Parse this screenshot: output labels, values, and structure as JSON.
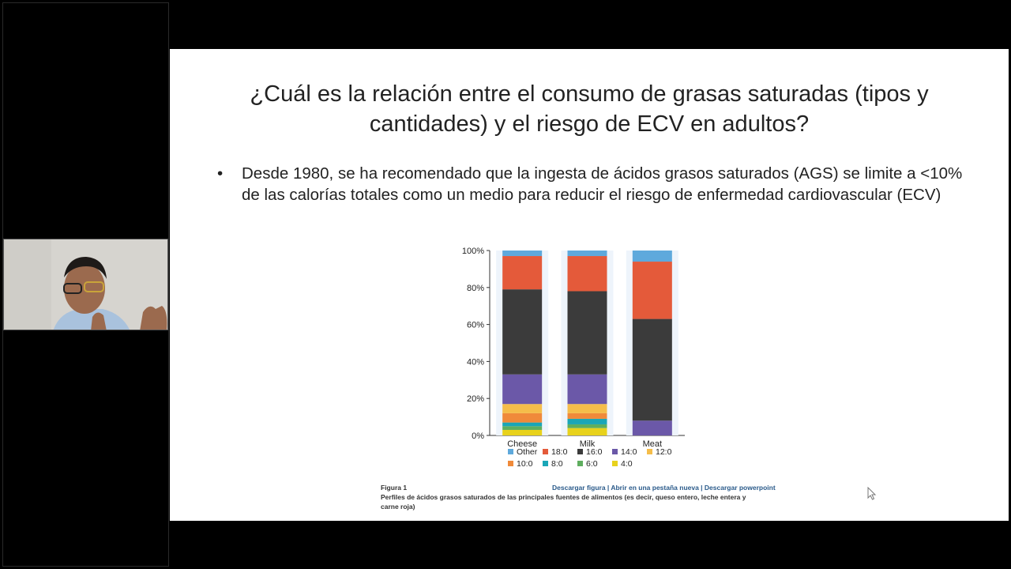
{
  "slide": {
    "title": "¿Cuál es la relación entre el consumo de grasas saturadas (tipos y cantidades) y el riesgo de ECV en adultos?",
    "bullet_marker": "•",
    "bullet": "Desde 1980, se ha recomendado que la ingesta de ácidos grasos saturados (AGS) se limite a <10% de las calorías totales como un medio para reducir el riesgo de enfermedad cardiovascular (ECV)"
  },
  "figure": {
    "number": "Figura 1",
    "links": "Descargar figura | Abrir en una pestaña nueva | Descargar powerpoint",
    "description": "Perfiles de ácidos grasos saturados de las principales fuentes de alimentos (es decir, queso entero, leche entera y carne roja)"
  },
  "chart_data": {
    "type": "bar",
    "stacked": true,
    "categories": [
      "Cheese",
      "Milk",
      "Meat"
    ],
    "ylim": [
      0,
      100
    ],
    "yticks": [
      "0%",
      "20%",
      "40%",
      "60%",
      "80%",
      "100%"
    ],
    "series": [
      {
        "name": "4:0",
        "color": "#e8d21c",
        "values": [
          3,
          4,
          0
        ]
      },
      {
        "name": "6:0",
        "color": "#5fae5f",
        "values": [
          2,
          2,
          0
        ]
      },
      {
        "name": "8:0",
        "color": "#1aa6b7",
        "values": [
          2,
          3,
          0
        ]
      },
      {
        "name": "10:0",
        "color": "#f08a3a",
        "values": [
          5,
          3,
          0
        ]
      },
      {
        "name": "12:0",
        "color": "#f5bd4a",
        "values": [
          5,
          5,
          0
        ]
      },
      {
        "name": "14:0",
        "color": "#6b58a8",
        "values": [
          16,
          16,
          8
        ]
      },
      {
        "name": "16:0",
        "color": "#3b3b3b",
        "values": [
          46,
          45,
          55
        ]
      },
      {
        "name": "18:0",
        "color": "#e45a3a",
        "values": [
          18,
          19,
          31
        ]
      },
      {
        "name": "Other",
        "color": "#5ea9dc",
        "values": [
          3,
          3,
          6
        ]
      }
    ],
    "legend_order": [
      "Other",
      "18:0",
      "16:0",
      "14:0",
      "12:0",
      "10:0",
      "8:0",
      "6:0",
      "4:0"
    ],
    "legend_position": "bottom"
  }
}
